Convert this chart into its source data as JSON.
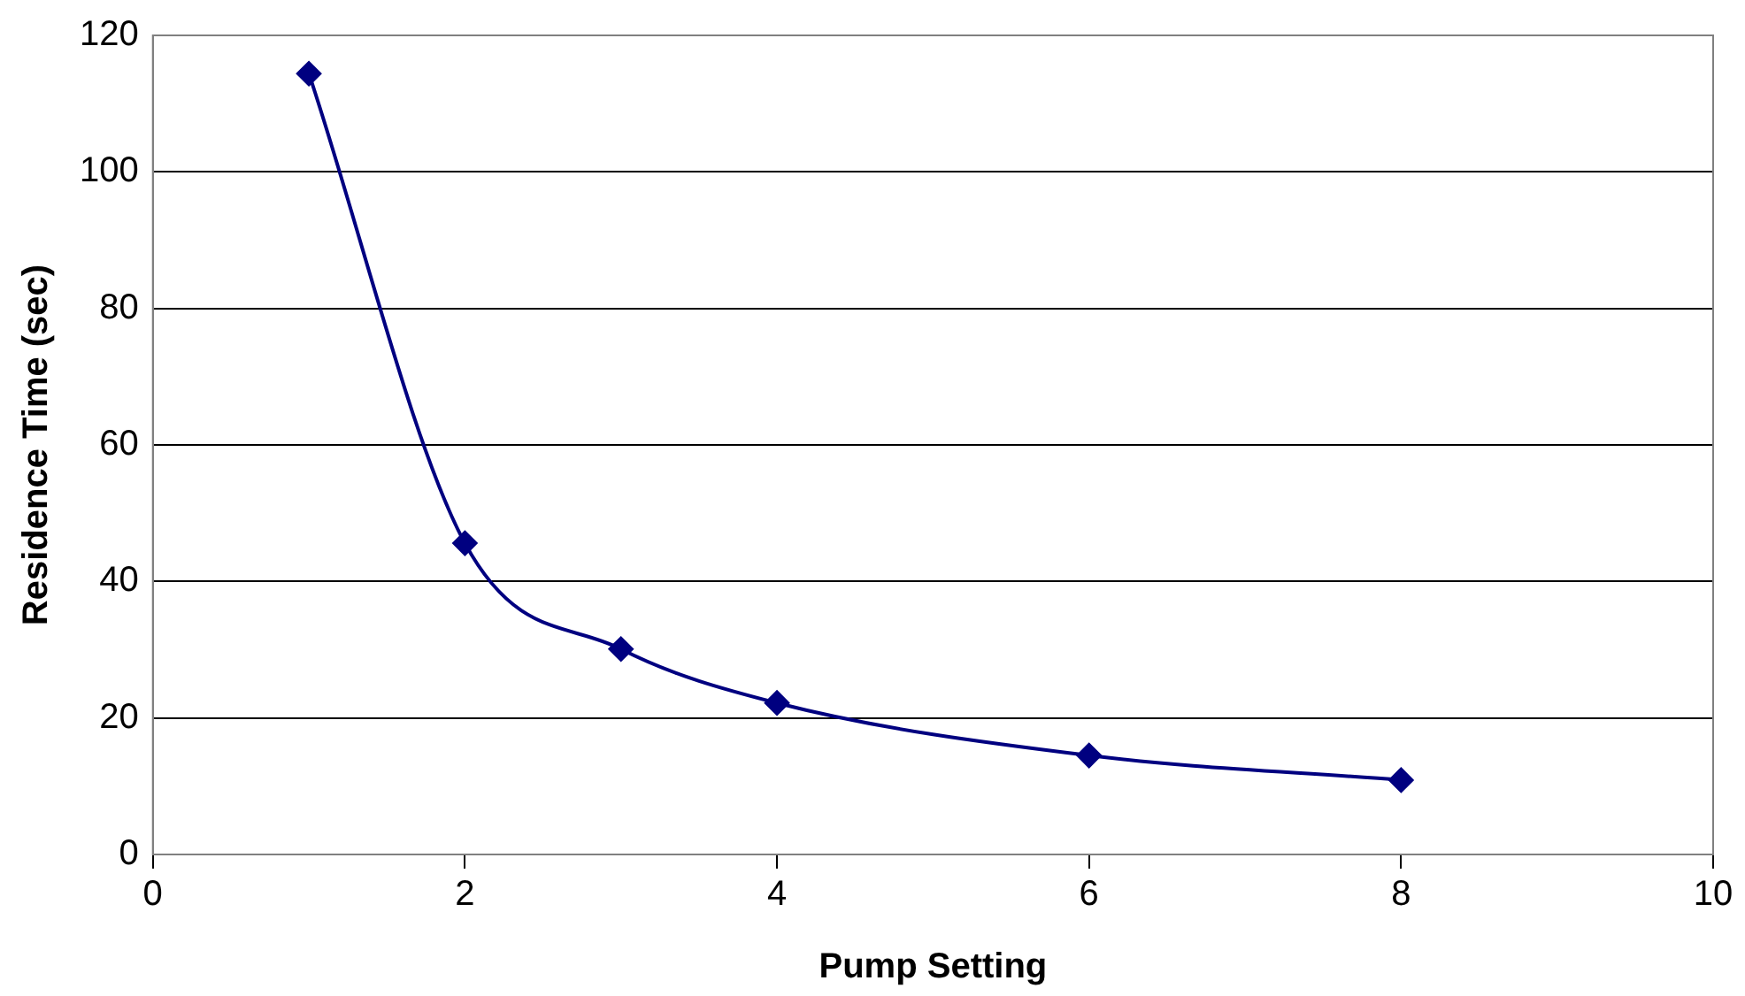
{
  "chart_data": {
    "type": "line",
    "xlabel": "Pump Setting",
    "ylabel": "Residence Time (sec)",
    "x": [
      1,
      2,
      3,
      4,
      6,
      8
    ],
    "series": [
      {
        "color": "#000080",
        "values": [
          114.4,
          45.6,
          30.1,
          22.2,
          14.5,
          10.9
        ]
      }
    ],
    "xlim": [
      0,
      10
    ],
    "xticks": [
      0,
      2,
      4,
      6,
      8,
      10
    ],
    "ylim": [
      0,
      120
    ],
    "yticks": [
      0,
      20,
      40,
      60,
      80,
      100,
      120
    ],
    "grid": "y",
    "legend": false,
    "marker": "diamond",
    "line_style": "solid"
  }
}
